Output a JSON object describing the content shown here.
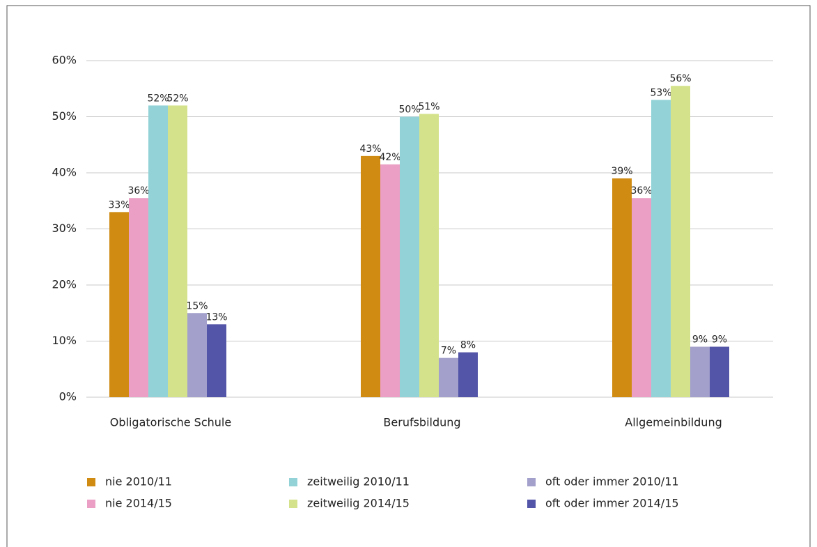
{
  "chart_data": {
    "type": "bar",
    "categories": [
      "Obligatorische Schule",
      "Berufsbildung",
      "Allgemeinbildung"
    ],
    "series": [
      {
        "name": "nie 2010/11",
        "color": "#d08b12",
        "values": [
          33,
          43,
          39
        ],
        "value_labels": [
          "33%",
          "43%",
          "39%"
        ]
      },
      {
        "name": "nie 2014/15",
        "color": "#eb9fc4",
        "values": [
          35.5,
          41.5,
          35.5
        ],
        "value_labels": [
          "36%",
          "42%",
          "36%"
        ]
      },
      {
        "name": "zeitweilig 2010/11",
        "color": "#93d3d8",
        "values": [
          52,
          50,
          53
        ],
        "value_labels": [
          "52%",
          "50%",
          "53%"
        ]
      },
      {
        "name": "zeitweilig 2014/15",
        "color": "#d4e38b",
        "values": [
          52,
          50.5,
          55.5
        ],
        "value_labels": [
          "52%",
          "51%",
          "56%"
        ]
      },
      {
        "name": "oft oder immer 2010/11",
        "color": "#a3a0cc",
        "values": [
          15,
          7,
          9
        ],
        "value_labels": [
          "15%",
          "7%",
          "9%"
        ]
      },
      {
        "name": "oft oder immer 2014/15",
        "color": "#5355a8",
        "values": [
          13,
          8,
          9
        ],
        "value_labels": [
          "13%",
          "8%",
          "9%"
        ]
      }
    ],
    "ylim": [
      0,
      60
    ],
    "yticks": [
      {
        "value": 0,
        "label": "0%"
      },
      {
        "value": 10,
        "label": "10%"
      },
      {
        "value": 20,
        "label": "20%"
      },
      {
        "value": 30,
        "label": "30%"
      },
      {
        "value": 40,
        "label": "40%"
      },
      {
        "value": 50,
        "label": "50%"
      },
      {
        "value": 60,
        "label": "60%"
      }
    ],
    "grid": true,
    "legend": "bottom"
  }
}
